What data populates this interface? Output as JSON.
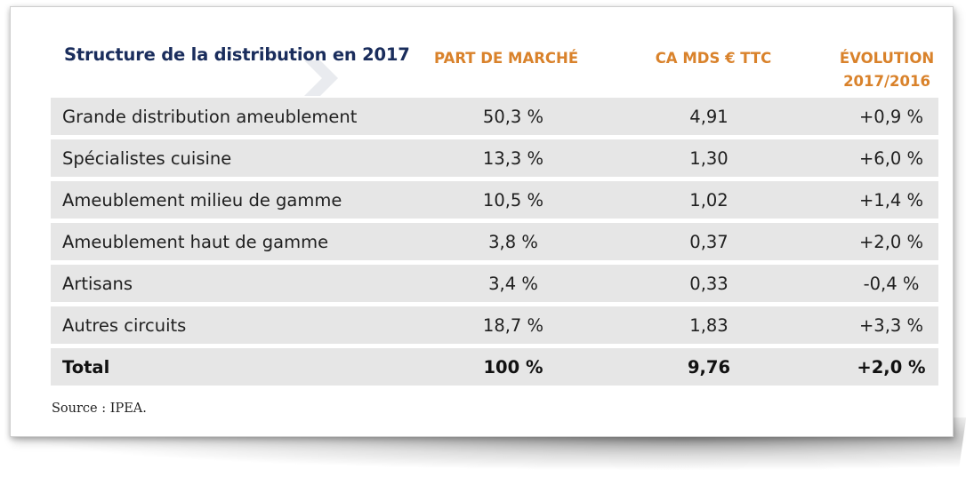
{
  "table": {
    "title": "Structure de la distribution en 2017",
    "columns": [
      "PART DE MARCHÉ",
      "CA MDS € TTC",
      "ÉVOLUTION",
      "2017/2016"
    ],
    "rows": [
      {
        "label": "Grande distribution ameublement",
        "share": "50,3 %",
        "ca": "4,91",
        "evolution": "+0,9 %"
      },
      {
        "label": "Spécialistes cuisine",
        "share": "13,3 %",
        "ca": "1,30",
        "evolution": "+6,0 %"
      },
      {
        "label": "Ameublement milieu de gamme",
        "share": "10,5 %",
        "ca": "1,02",
        "evolution": "+1,4 %"
      },
      {
        "label": "Ameublement haut de gamme",
        "share": "3,8 %",
        "ca": "0,37",
        "evolution": "+2,0 %"
      },
      {
        "label": "Artisans",
        "share": "3,4 %",
        "ca": "0,33",
        "evolution": "-0,4 %"
      },
      {
        "label": "Autres circuits",
        "share": "18,7 %",
        "ca": "1,83",
        "evolution": "+3,3 %"
      }
    ],
    "total": {
      "label": "Total",
      "share": "100 %",
      "ca": "9,76",
      "evolution": "+2,0 %"
    },
    "source": "Source : IPEA."
  },
  "colors": {
    "title": "#1a2d5c",
    "header_accent": "#d9822b",
    "row_background": "#e6e6e6"
  }
}
